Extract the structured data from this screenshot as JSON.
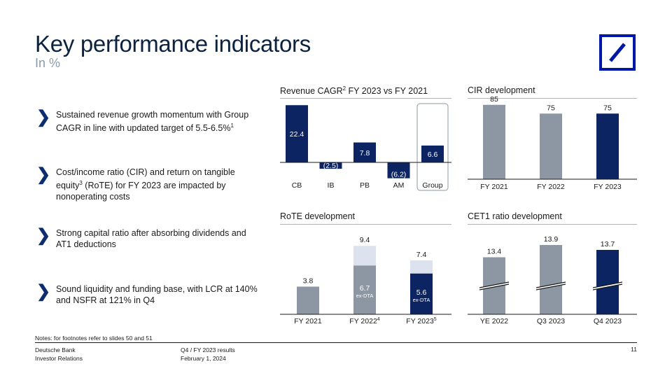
{
  "header": {
    "title": "Key performance indicators",
    "subtitle": "In %"
  },
  "bullets": [
    {
      "text": "Sustained revenue growth momentum with Group CAGR in line with updated target of 5.5-6.5%",
      "sup": "1",
      "after": ""
    },
    {
      "text": "Cost/income ratio (CIR) and return on tangible equity",
      "sup": "3",
      "after": " (RoTE) for FY 2023 are impacted by nonoperating costs"
    },
    {
      "text": "Strong capital ratio after absorbing dividends and AT1 deductions",
      "sup": "",
      "after": ""
    },
    {
      "text": "Sound liquidity and funding base, with LCR at 140% and NSFR at 121% in Q4",
      "sup": "",
      "after": ""
    }
  ],
  "colors": {
    "navy": "#0c2461",
    "grey": "#8c97a3",
    "light": "#dde3ee",
    "accent": "#0018a8"
  },
  "chart_data": [
    {
      "id": "revenue",
      "type": "bar",
      "title": "Revenue CAGR",
      "title_sup": "2",
      "title_after": " FY 2023 vs FY 2021",
      "categories": [
        "CB",
        "IB",
        "PB",
        "AM",
        "Group"
      ],
      "values": [
        22.4,
        -2.5,
        7.8,
        -6.2,
        6.6
      ],
      "labels": [
        "22.4",
        "(2.5)",
        "7.8",
        "(6.2)",
        "6.6"
      ],
      "highlight": "Group"
    },
    {
      "id": "cir",
      "type": "bar",
      "title": "CIR development",
      "categories": [
        "FY 2021",
        "FY 2022",
        "FY 2023"
      ],
      "values": [
        85,
        75,
        75
      ],
      "labels": [
        "85",
        "75",
        "75"
      ]
    },
    {
      "id": "rote",
      "type": "bar",
      "title": "RoTE development",
      "categories": [
        "FY 2021",
        "FY 2022",
        "FY 2023"
      ],
      "category_sups": [
        "",
        "4",
        "5"
      ],
      "series": [
        {
          "name": "ex-DTA",
          "values": [
            3.8,
            6.7,
            5.6
          ],
          "labels": [
            "3.8",
            "6.7",
            "5.6"
          ]
        },
        {
          "name": "total",
          "values": [
            3.8,
            9.4,
            7.4
          ],
          "labels": [
            "",
            "9.4",
            "7.4"
          ]
        }
      ],
      "inner_note": "ex-DTA"
    },
    {
      "id": "cet1",
      "type": "bar",
      "title": "CET1 ratio development",
      "categories": [
        "YE 2022",
        "Q3 2023",
        "Q4 2023"
      ],
      "values": [
        13.4,
        13.9,
        13.7
      ],
      "labels": [
        "13.4",
        "13.9",
        "13.7"
      ],
      "axis_break": true
    }
  ],
  "notes": "Notes: for footnotes refer to slides 50 and 51",
  "footer": {
    "org_line1": "Deutsche Bank",
    "org_line2": "Investor Relations",
    "doc_line1": "Q4 / FY 2023 results",
    "doc_line2": "February 1, 2024",
    "page": "11"
  }
}
